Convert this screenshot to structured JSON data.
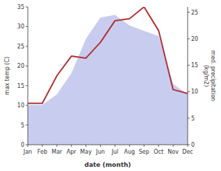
{
  "chart_data": {
    "type": "line",
    "xlabel": "date (month)",
    "ylabel": "max temp (C)",
    "y2label": "med. precipitation\n(kg/m2)",
    "categories": [
      "Jan",
      "Feb",
      "Mar",
      "Apr",
      "May",
      "Jun",
      "Jul",
      "Aug",
      "Sep",
      "Oct",
      "Nov",
      "Dec"
    ],
    "series": [
      {
        "type": "area",
        "axis": "y2",
        "color": "#b0b8e8",
        "values": [
          7.5,
          7.5,
          9.5,
          13.5,
          20.0,
          24.0,
          24.5,
          22.5,
          21.5,
          20.5,
          11.5,
          9.5
        ]
      },
      {
        "type": "line",
        "color": "#b03030",
        "values": [
          10.5,
          10.5,
          17.5,
          22.5,
          22.0,
          26.0,
          31.5,
          32.0,
          35.0,
          29.0,
          14.0,
          13.0
        ]
      }
    ],
    "ylim": [
      0,
      35
    ],
    "yticks": [
      0,
      5,
      10,
      15,
      20,
      25,
      30,
      35
    ],
    "y2lim": [
      0,
      26
    ],
    "y2ticks": [
      0,
      5,
      10,
      15,
      20,
      25
    ],
    "grid": false
  }
}
